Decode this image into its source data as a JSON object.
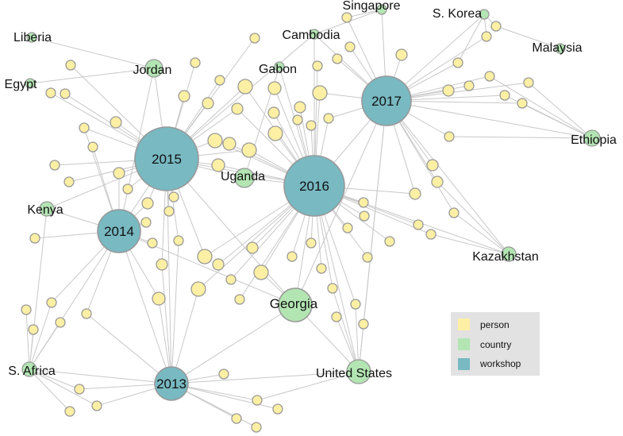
{
  "legend": {
    "items": [
      {
        "key": "person",
        "label": "person"
      },
      {
        "key": "country",
        "label": "country"
      },
      {
        "key": "workshop",
        "label": "workshop"
      }
    ]
  },
  "colors": {
    "person": "#FDEFA3",
    "country": "#B3E5B3",
    "workshop": "#78B9C2",
    "stroke": "#999999",
    "edge": "#C8C8C8",
    "legend_bg": "#E2E2E2"
  },
  "nodes": {
    "workshops": [
      {
        "id": "w2015",
        "label": "2015"
      },
      {
        "id": "w2016",
        "label": "2016"
      },
      {
        "id": "w2017",
        "label": "2017"
      },
      {
        "id": "w2014",
        "label": "2014"
      },
      {
        "id": "w2013",
        "label": "2013"
      }
    ],
    "countries": [
      {
        "id": "singapore",
        "label": "Singapore"
      },
      {
        "id": "skorea",
        "label": "S. Korea"
      },
      {
        "id": "cambodia",
        "label": "Cambodia"
      },
      {
        "id": "malaysia",
        "label": "Malaysia"
      },
      {
        "id": "liberia",
        "label": "Liberia"
      },
      {
        "id": "jordan",
        "label": "Jordan"
      },
      {
        "id": "gabon",
        "label": "Gabon"
      },
      {
        "id": "egypt",
        "label": "Egypt"
      },
      {
        "id": "ethiopia",
        "label": "Ethiopia"
      },
      {
        "id": "uganda",
        "label": "Uganda"
      },
      {
        "id": "kenya",
        "label": "Kenya"
      },
      {
        "id": "kazakhstan",
        "label": "Kazakhstan"
      },
      {
        "id": "georgia",
        "label": "Georgia"
      },
      {
        "id": "safrica",
        "label": "S. Africa"
      },
      {
        "id": "us",
        "label": "United States"
      }
    ]
  }
}
